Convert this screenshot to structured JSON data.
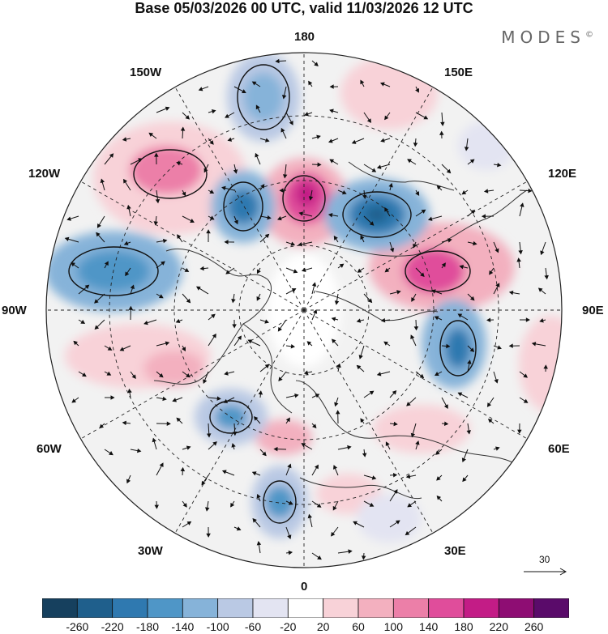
{
  "header": {
    "title": "Base 05/03/2026 00 UTC, valid 11/03/2026 12 UTC",
    "brand": "MODES",
    "brand_mark": "©"
  },
  "map": {
    "projection": "north polar stereographic",
    "longitude_labels": {
      "top": "180",
      "top_right": "150E",
      "right_upper": "120E",
      "right": "90E",
      "right_lower": "60E",
      "bottom_right": "30E",
      "bottom": "0",
      "bottom_left": "30W",
      "left_lower": "60W",
      "left": "90W",
      "left_upper": "120W",
      "top_left": "150W"
    },
    "wind_scale": {
      "value": "30"
    }
  },
  "colorbar": {
    "ticks": [
      "-260",
      "-220",
      "-180",
      "-140",
      "-100",
      "-60",
      "-20",
      "20",
      "60",
      "100",
      "140",
      "180",
      "220",
      "260"
    ],
    "colors": [
      "#16405e",
      "#1f5f8c",
      "#2f79b0",
      "#4f96c7",
      "#86b3d9",
      "#bac9e4",
      "#e3e4f2",
      "#ffffff",
      "#f8d2d8",
      "#f3b0bf",
      "#ec7fa8",
      "#e04d9b",
      "#c31c86",
      "#8e0d73",
      "#5a0b6a"
    ]
  }
}
